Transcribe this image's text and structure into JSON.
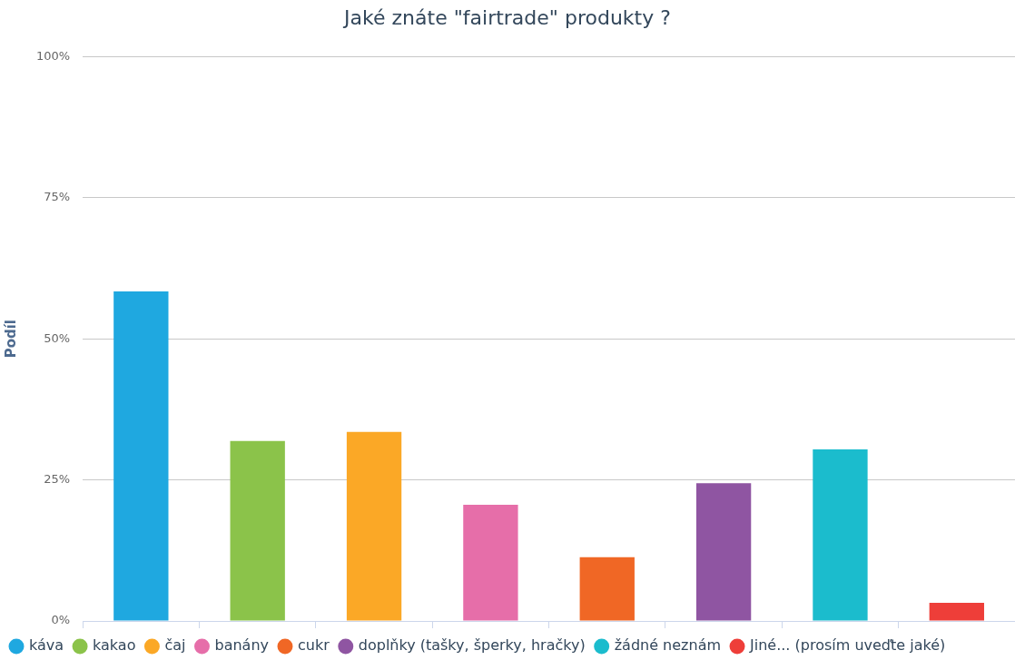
{
  "chart_data": {
    "type": "bar",
    "title": "Jaké znáte \"fairtrade\" produkty ?",
    "ylabel": "Podíl",
    "categories": [
      null,
      null,
      null,
      null,
      null,
      null,
      null,
      null
    ],
    "series": [
      {
        "name": "káva",
        "color": "#1fa8e0",
        "values": [
          58.4,
          null,
          null,
          null,
          null,
          null,
          null,
          null
        ]
      },
      {
        "name": "kakao",
        "color": "#8bc34a",
        "values": [
          null,
          31.9,
          null,
          null,
          null,
          null,
          null,
          null
        ]
      },
      {
        "name": "čaj",
        "color": "#fba826",
        "values": [
          null,
          null,
          33.5,
          null,
          null,
          null,
          null,
          null
        ]
      },
      {
        "name": "banány",
        "color": "#e66ea9",
        "values": [
          null,
          null,
          null,
          20.6,
          null,
          null,
          null,
          null
        ]
      },
      {
        "name": "cukr",
        "color": "#f06725",
        "values": [
          null,
          null,
          null,
          null,
          11.3,
          null,
          null,
          null
        ]
      },
      {
        "name": "doplňky (tašky, šperky, hračky)",
        "color": "#8f55a2",
        "values": [
          null,
          null,
          null,
          null,
          null,
          24.4,
          null,
          null
        ]
      },
      {
        "name": "žádné neznám",
        "color": "#1bbccd",
        "values": [
          null,
          null,
          null,
          null,
          null,
          null,
          30.4,
          null
        ]
      },
      {
        "name": "Jiné... (prosím uveďte jaké)",
        "color": "#ee3e39",
        "values": [
          null,
          null,
          null,
          null,
          null,
          null,
          null,
          3.2
        ]
      }
    ],
    "ylim": [
      0,
      100
    ],
    "yticks": [
      {
        "value": 0,
        "label": "0%"
      },
      {
        "value": 25,
        "label": "25%"
      },
      {
        "value": 50,
        "label": "50%"
      },
      {
        "value": 75,
        "label": "75%"
      },
      {
        "value": 100,
        "label": "100%"
      }
    ],
    "grid": "y",
    "legend": "bottom",
    "tick_labels": "y"
  }
}
